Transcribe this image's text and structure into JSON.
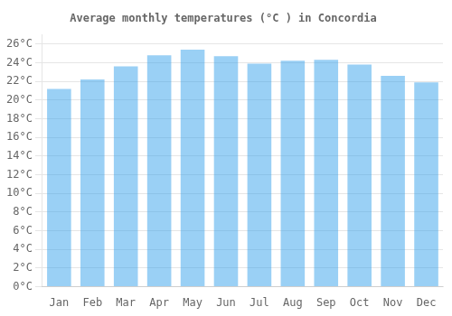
{
  "chart_data": {
    "type": "bar",
    "title": "Average monthly temperatures (°C ) in Concordia",
    "categories": [
      "Jan",
      "Feb",
      "Mar",
      "Apr",
      "May",
      "Jun",
      "Jul",
      "Aug",
      "Sep",
      "Oct",
      "Nov",
      "Dec"
    ],
    "values": [
      21.2,
      22.2,
      23.6,
      24.8,
      25.4,
      24.7,
      23.9,
      24.2,
      24.3,
      23.8,
      22.6,
      21.9
    ],
    "ylim": [
      0,
      27
    ],
    "yticks": [
      {
        "value": 0,
        "label": "0°C"
      },
      {
        "value": 2,
        "label": "2°C"
      },
      {
        "value": 4,
        "label": "4°C"
      },
      {
        "value": 6,
        "label": "6°C"
      },
      {
        "value": 8,
        "label": "8°C"
      },
      {
        "value": 10,
        "label": "10°C"
      },
      {
        "value": 12,
        "label": "12°C"
      },
      {
        "value": 14,
        "label": "14°C"
      },
      {
        "value": 16,
        "label": "16°C"
      },
      {
        "value": 18,
        "label": "18°C"
      },
      {
        "value": 20,
        "label": "20°C"
      },
      {
        "value": 22,
        "label": "22°C"
      },
      {
        "value": 24,
        "label": "24°C"
      },
      {
        "value": 26,
        "label": "26°C"
      }
    ],
    "grid": true
  }
}
